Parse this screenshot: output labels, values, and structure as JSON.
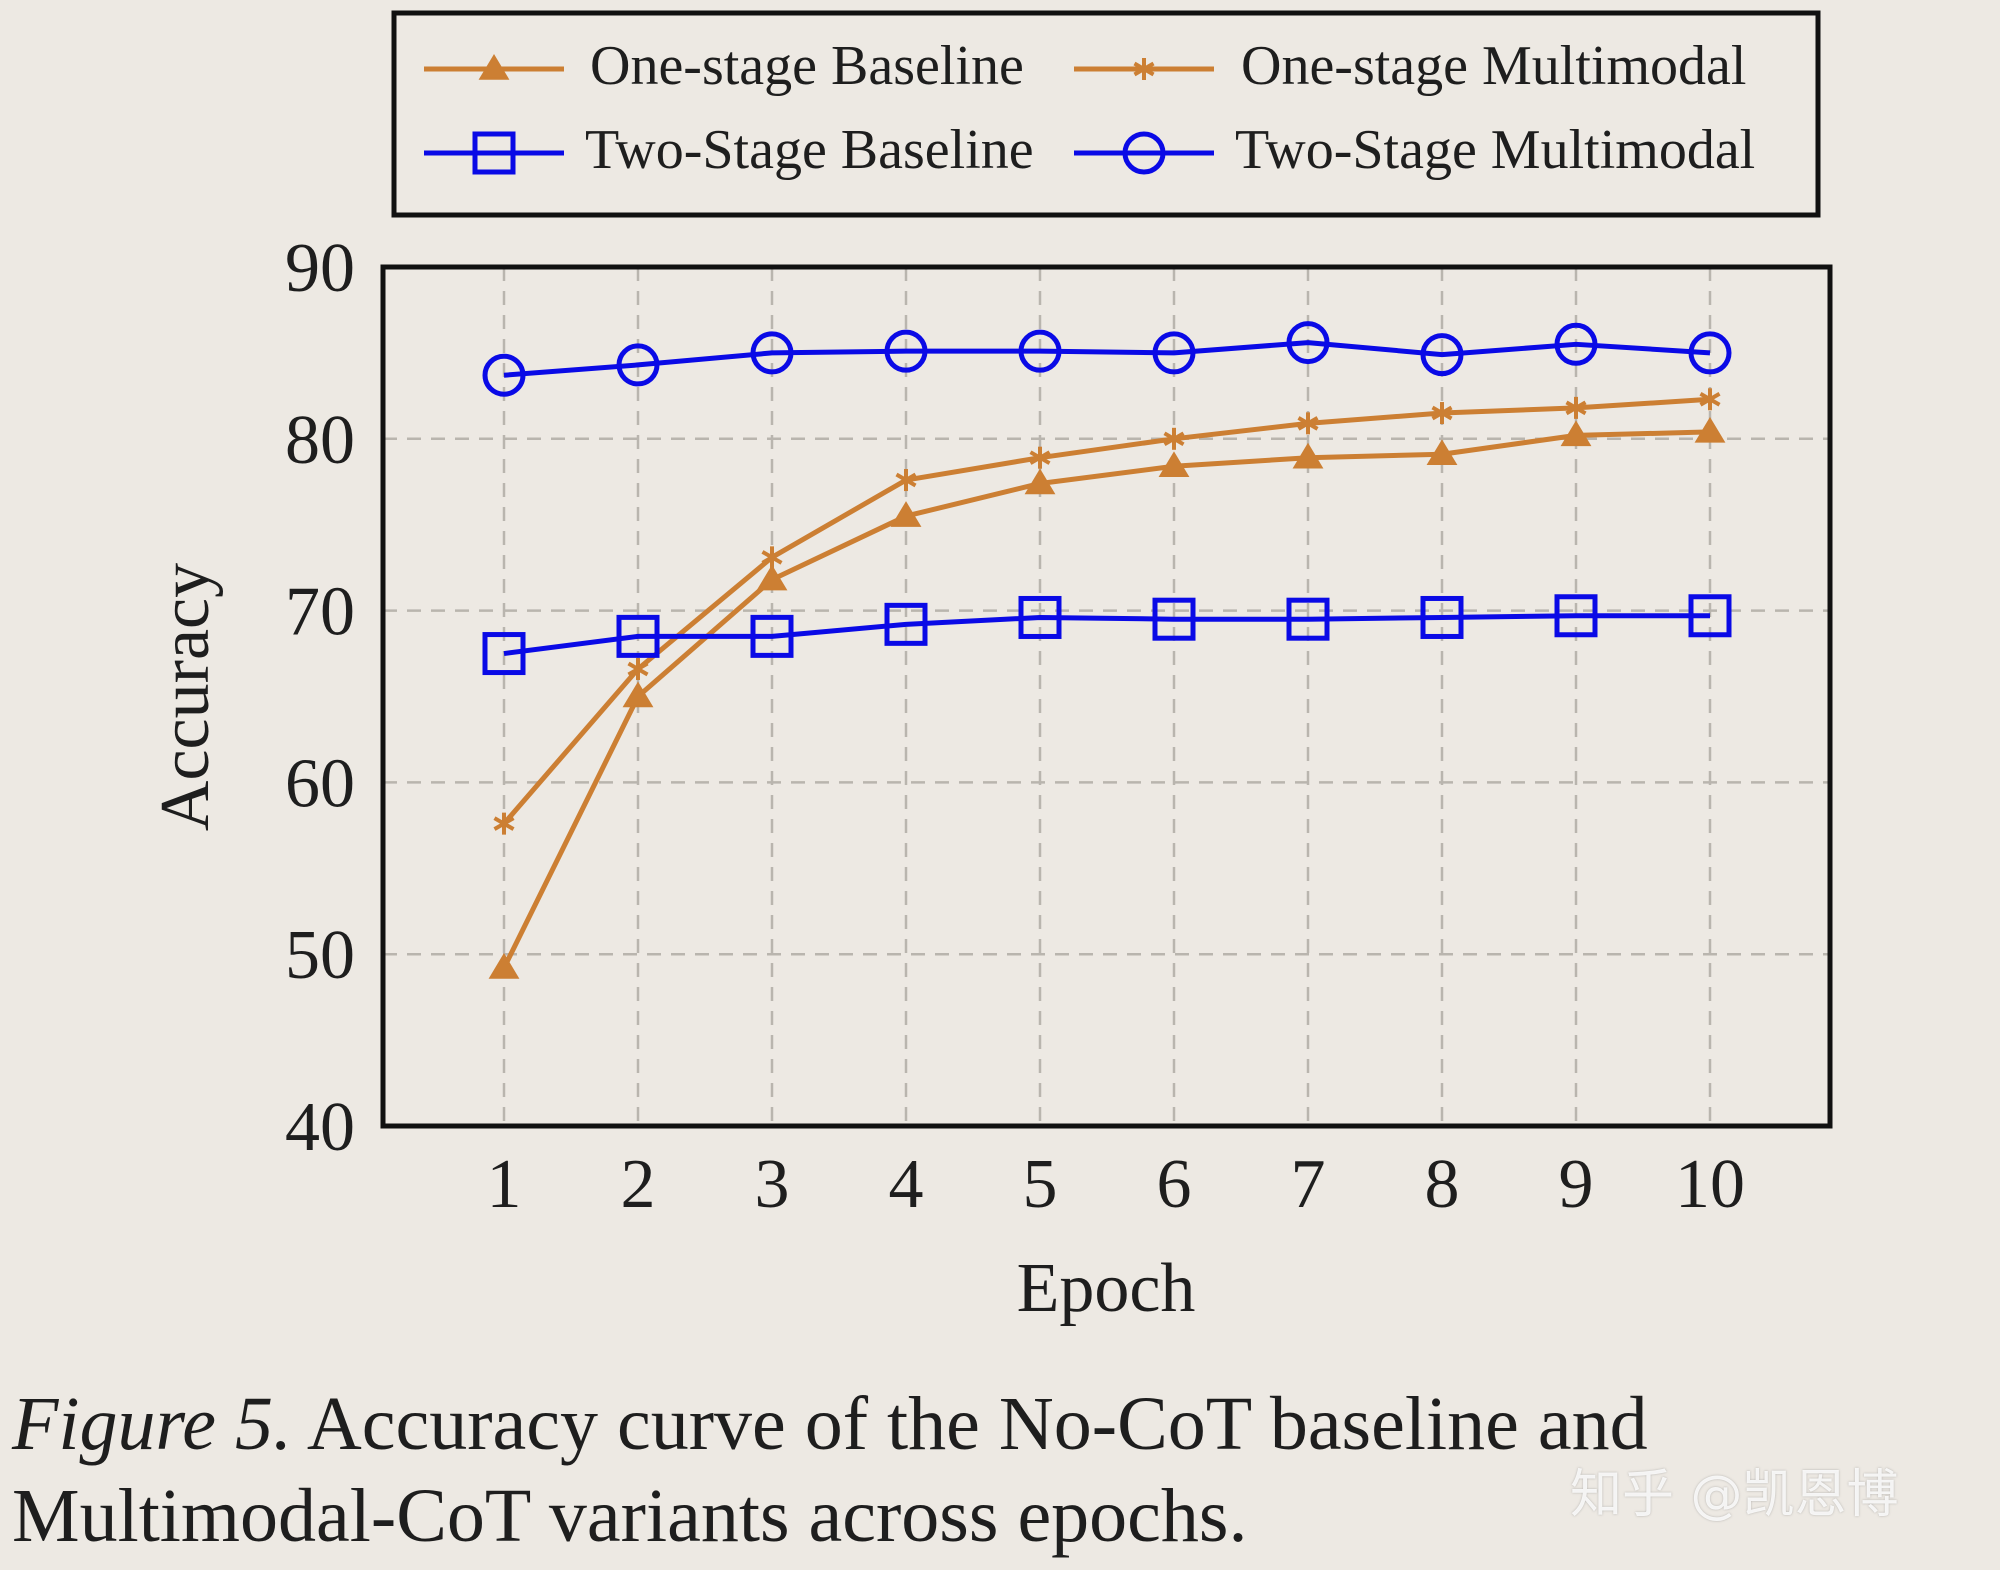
{
  "chart_data": {
    "type": "line",
    "title": "",
    "xlabel": "Epoch",
    "ylabel": "Accuracy",
    "x": [
      1,
      2,
      3,
      4,
      5,
      6,
      7,
      8,
      9,
      10
    ],
    "xticks": [
      "1",
      "2",
      "3",
      "4",
      "5",
      "6",
      "7",
      "8",
      "9",
      "10"
    ],
    "yticks": [
      "40",
      "50",
      "60",
      "70",
      "80",
      "90"
    ],
    "ylim": [
      40,
      90
    ],
    "xlim": [
      0.1,
      10.9
    ],
    "grid": true,
    "legend_position": "top",
    "series": [
      {
        "name": "One-stage Baseline",
        "color": "#cc7f33",
        "marker": "triangle",
        "values": [
          49.2,
          65.0,
          71.8,
          75.5,
          77.4,
          78.4,
          78.9,
          79.1,
          80.2,
          80.4
        ]
      },
      {
        "name": "One-stage Multimodal",
        "color": "#cc7f33",
        "marker": "star",
        "values": [
          57.6,
          66.6,
          73.1,
          77.6,
          78.9,
          80.0,
          80.9,
          81.5,
          81.8,
          82.3
        ]
      },
      {
        "name": "Two-Stage Baseline",
        "color": "#0a0ae6",
        "marker": "square",
        "values": [
          67.5,
          68.5,
          68.5,
          69.2,
          69.6,
          69.5,
          69.5,
          69.6,
          69.7,
          69.7
        ]
      },
      {
        "name": "Two-Stage Multimodal",
        "color": "#0a0ae6",
        "marker": "circle",
        "values": [
          83.7,
          84.3,
          85.0,
          85.1,
          85.1,
          85.0,
          85.6,
          84.9,
          85.5,
          85.0
        ]
      }
    ]
  },
  "caption": {
    "label": "Figure 5.",
    "text": " Accuracy curve of the No-CoT baseline and Multimodal-CoT variants across epochs."
  },
  "watermark": "知乎 @凯恩博"
}
